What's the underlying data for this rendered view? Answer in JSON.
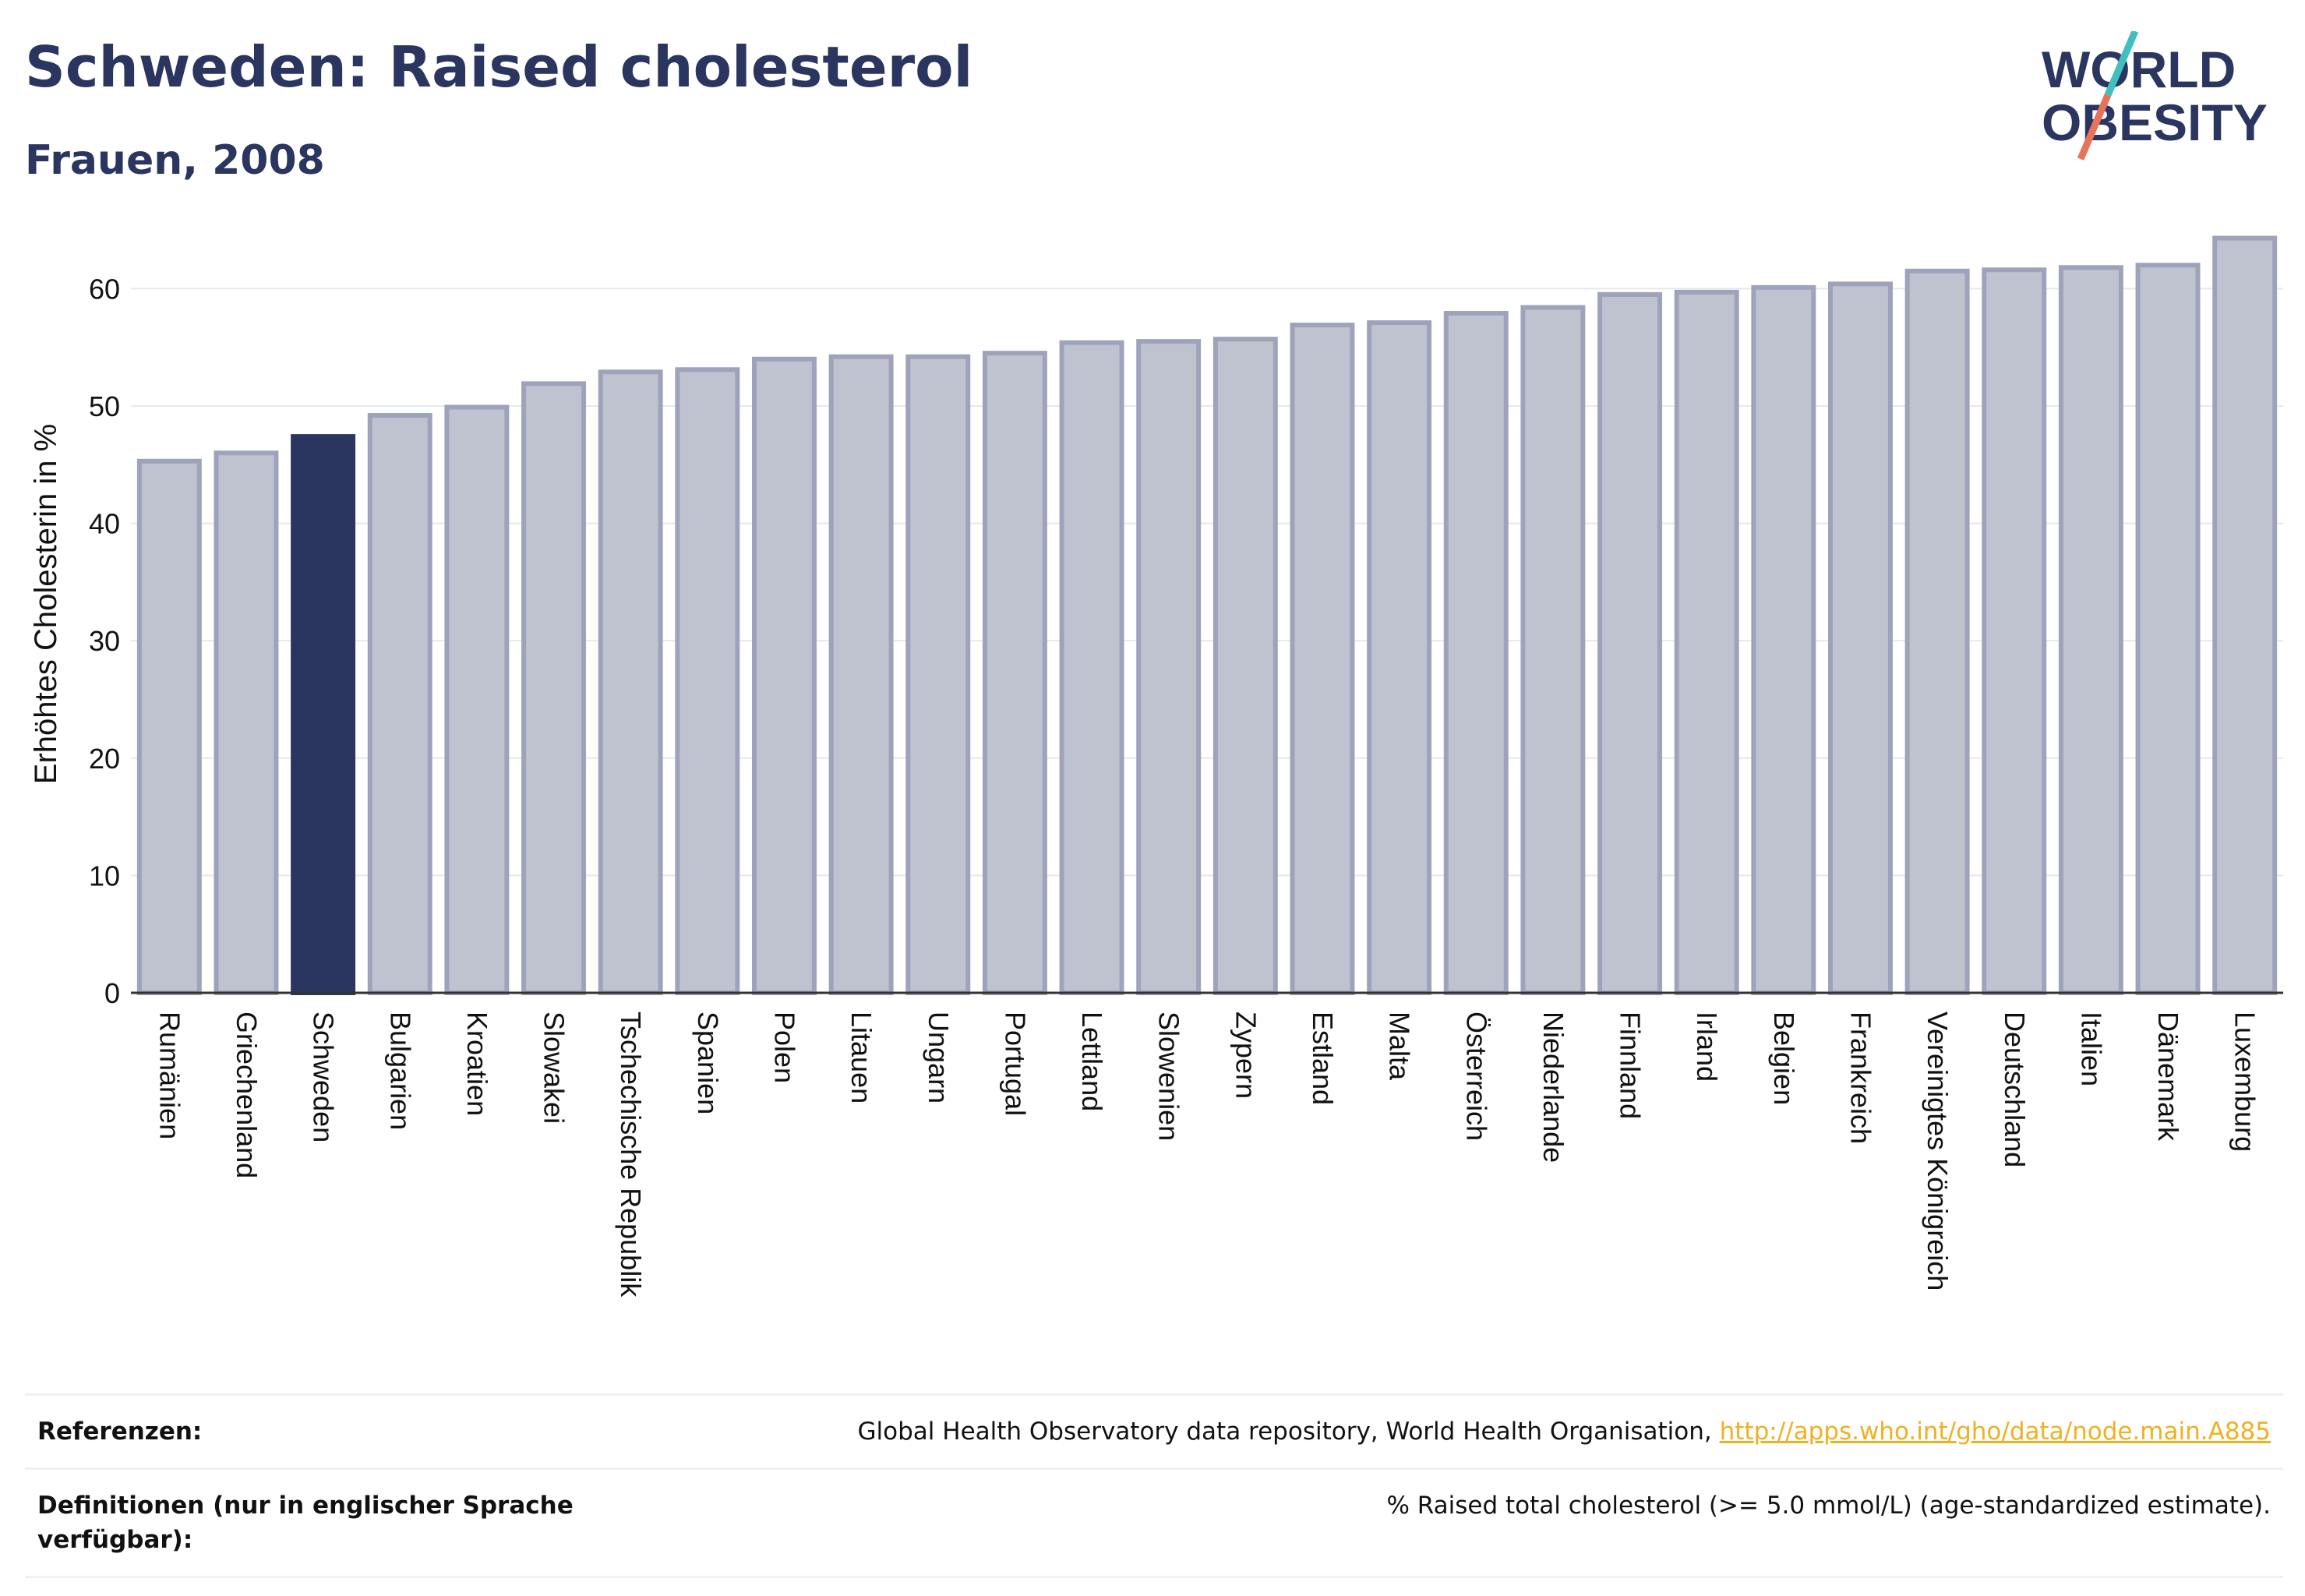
{
  "header": {
    "title": "Schweden: Raised cholesterol",
    "subtitle": "Frauen, 2008"
  },
  "logo": {
    "line1": "WORLD",
    "line2": "OBESITY"
  },
  "colors": {
    "highlight": "#2a3560",
    "bar_fill": "#bfc3d0",
    "bar_stroke": "#9ea3bb",
    "grid": "#e6e8ee",
    "link": "#f0b020",
    "logo_slash_top": "#3fbfbf",
    "logo_slash_bottom": "#e8735a"
  },
  "chart_data": {
    "type": "bar",
    "ylabel": "Erhöhtes Cholesterin in %",
    "xlabel": "",
    "ylim": [
      0,
      66
    ],
    "yticks": [
      0,
      10,
      20,
      30,
      40,
      50,
      60
    ],
    "grid": true,
    "highlight_category": "Schweden",
    "categories": [
      "Rumänien",
      "Griechenland",
      "Schweden",
      "Bulgarien",
      "Kroatien",
      "Slowakei",
      "Tschechische Republik",
      "Spanien",
      "Polen",
      "Litauen",
      "Ungarn",
      "Portugal",
      "Lettland",
      "Slowenien",
      "Zypern",
      "Estland",
      "Malta",
      "Österreich",
      "Niederlande",
      "Finnland",
      "Irland",
      "Belgien",
      "Frankreich",
      "Vereinigtes Königreich",
      "Deutschland",
      "Italien",
      "Dänemark",
      "Luxemburg"
    ],
    "values": [
      45.3,
      46.0,
      47.4,
      49.2,
      49.9,
      51.9,
      52.9,
      53.1,
      54.0,
      54.2,
      54.2,
      54.5,
      55.4,
      55.5,
      55.7,
      56.9,
      57.1,
      57.9,
      58.4,
      59.5,
      59.7,
      60.1,
      60.4,
      61.5,
      61.6,
      61.8,
      62.0,
      64.3
    ]
  },
  "references": {
    "ref_label": "Referenzen:",
    "ref_text": "Global Health Observatory data repository, World Health Organisation, ",
    "ref_link": "http://apps.who.int/gho/data/node.main.A885",
    "def_label": "Definitionen (nur in englischer Sprache verfügbar):",
    "def_text": "% Raised total cholesterol (>= 5.0 mmol/L) (age-standardized estimate)."
  }
}
